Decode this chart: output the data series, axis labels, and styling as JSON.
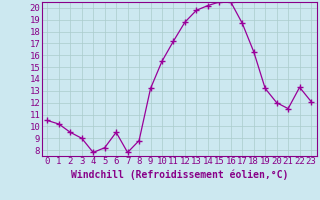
{
  "x": [
    0,
    1,
    2,
    3,
    4,
    5,
    6,
    7,
    8,
    9,
    10,
    11,
    12,
    13,
    14,
    15,
    16,
    17,
    18,
    19,
    20,
    21,
    22,
    23
  ],
  "y": [
    10.5,
    10.2,
    9.5,
    9.0,
    7.8,
    8.2,
    9.5,
    7.8,
    8.8,
    13.2,
    15.5,
    17.2,
    18.8,
    19.8,
    20.2,
    20.5,
    20.5,
    18.7,
    16.3,
    13.2,
    12.0,
    11.5,
    13.3,
    12.1
  ],
  "line_color": "#990099",
  "marker": "+",
  "marker_size": 4,
  "bg_color": "#cce8f0",
  "grid_color": "#aacccc",
  "xlabel": "Windchill (Refroidissement éolien,°C)",
  "ylabel": "",
  "xlim": [
    -0.5,
    23.5
  ],
  "ylim": [
    7.5,
    20.5
  ],
  "yticks": [
    8,
    9,
    10,
    11,
    12,
    13,
    14,
    15,
    16,
    17,
    18,
    19,
    20
  ],
  "xticks": [
    0,
    1,
    2,
    3,
    4,
    5,
    6,
    7,
    8,
    9,
    10,
    11,
    12,
    13,
    14,
    15,
    16,
    17,
    18,
    19,
    20,
    21,
    22,
    23
  ],
  "tick_color": "#880088",
  "label_color": "#880088",
  "axis_color": "#880088",
  "font_size": 6.5,
  "xlabel_font_size": 7,
  "lw": 0.9
}
